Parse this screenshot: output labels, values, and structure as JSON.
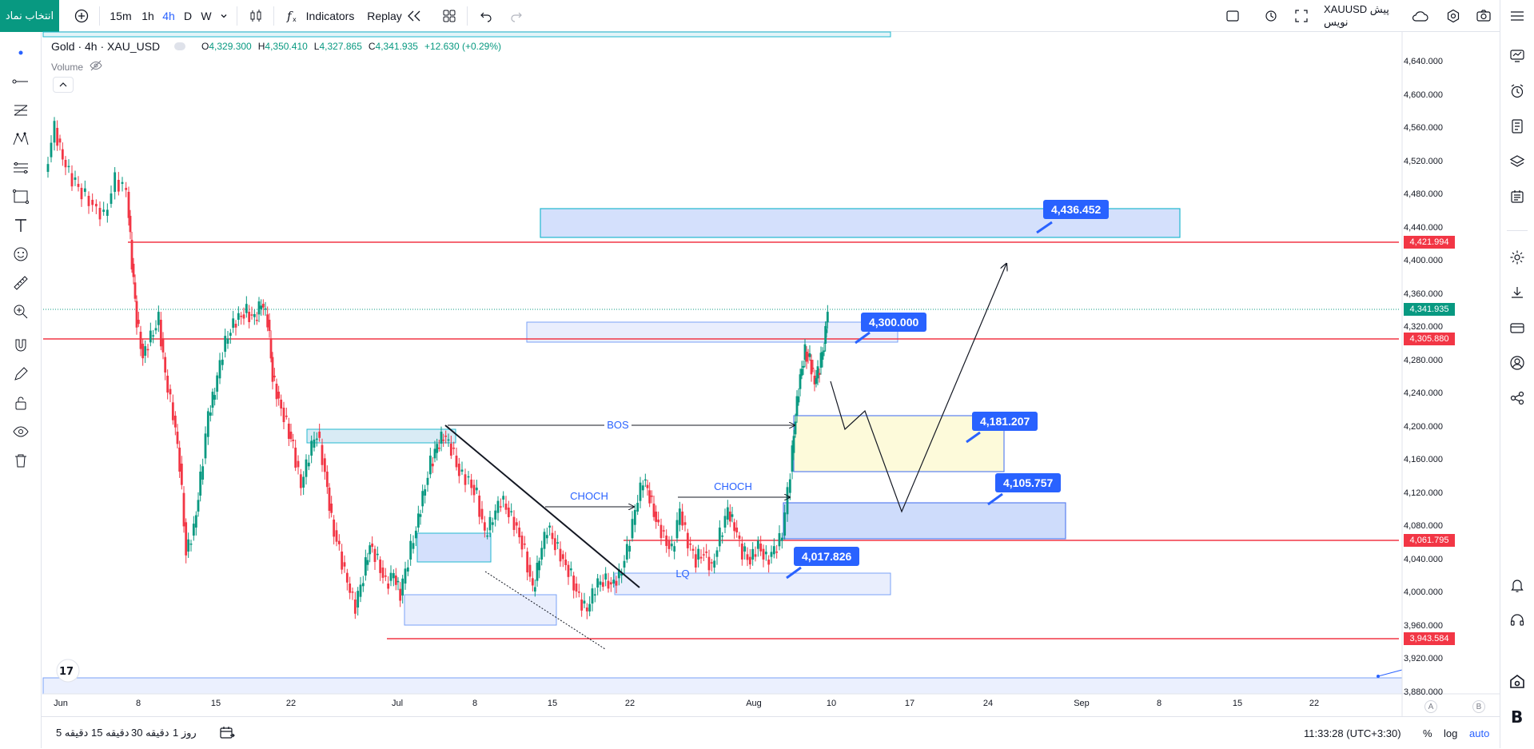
{
  "toolbar": {
    "pick_symbol": "انتخاب نماد",
    "intervals": [
      "15m",
      "1h",
      "4h",
      "D",
      "W"
    ],
    "active_interval": "4h",
    "indicators": "Indicators",
    "replay": "Replay",
    "symbol": "XAUUSD پیش نویس"
  },
  "legend": {
    "title": "Gold · 4h · XAU_USD",
    "o_key": "O",
    "o_val": "4,329.300",
    "h_key": "H",
    "h_val": "4,350.410",
    "l_key": "L",
    "l_val": "4,327.865",
    "c_key": "C",
    "c_val": "4,341.935",
    "change": "+12.630 (+0.29%)",
    "volume": "Volume"
  },
  "price_axis": [
    "4,640.000",
    "4,600.000",
    "4,560.000",
    "4,520.000",
    "4,480.000",
    "4,440.000",
    "4,400.000",
    "4,360.000",
    "4,320.000",
    "4,280.000",
    "4,240.000",
    "4,200.000",
    "4,160.000",
    "4,120.000",
    "4,080.000",
    "4,040.000",
    "4,000.000",
    "3,960.000",
    "3,920.000",
    "3,880.000"
  ],
  "time_axis": [
    "Jun",
    "8",
    "15",
    "22",
    "Jul",
    "8",
    "15",
    "22",
    "Aug",
    "10",
    "17",
    "24",
    "Sep",
    "8",
    "15",
    "22"
  ],
  "price_tags": {
    "level1": "4,421.994",
    "current": "4,341.935",
    "level2": "4,305.880",
    "level3": "4,061.795",
    "level4": "3,943.584"
  },
  "callouts": {
    "c1": "4,436.452",
    "c2": "4,300.000",
    "c3": "4,181.207",
    "c4": "4,105.757",
    "c5": "4,017.826"
  },
  "labels": {
    "bos": "BOS",
    "choch1": "CHOCH",
    "choch2": "CHOCH",
    "lq": "LQ"
  },
  "bottom": {
    "ranges": [
      "5 دقیقه",
      "15 دقیقه",
      "30 دقیقه",
      "1 روز"
    ],
    "clock": "11:33:28 (UTC+3:30)",
    "pct": "%",
    "log": "log",
    "auto": "auto"
  },
  "axis_markers": {
    "a": "A",
    "b": "B"
  },
  "colors": {
    "accent": "#2962ff",
    "up": "#089981",
    "down": "#f23645",
    "level": "#f23645"
  }
}
